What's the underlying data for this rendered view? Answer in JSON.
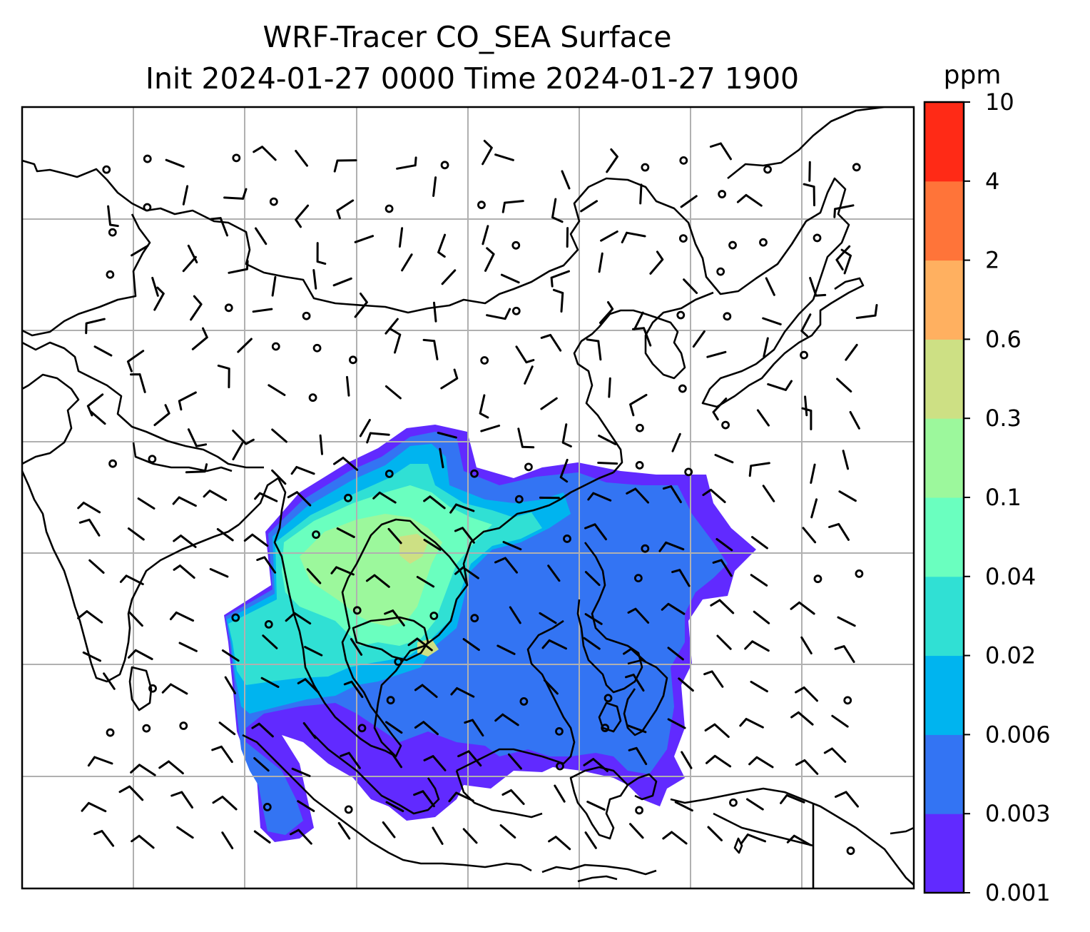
{
  "title": {
    "line1": "WRF-Tracer CO_SEA Surface",
    "line2": "Init 2024-01-27 0000 Time 2024-01-27 1900"
  },
  "colorbar": {
    "unit": "ppm",
    "levels": [
      "0.001",
      "0.003",
      "0.006",
      "0.02",
      "0.04",
      "0.1",
      "0.3",
      "0.6",
      "2",
      "4",
      "10"
    ],
    "colors": [
      "#612aff",
      "#3374f3",
      "#00b4ef",
      "#30e0d4",
      "#6affbf",
      "#9cf89c",
      "#cde084",
      "#ffb060",
      "#ff7439",
      "#ff2a16"
    ]
  },
  "map": {
    "gridlines": true,
    "grid_color": "#b0b0b0",
    "coastline_color": "#000000",
    "wind_barb_color": "#000000"
  }
}
